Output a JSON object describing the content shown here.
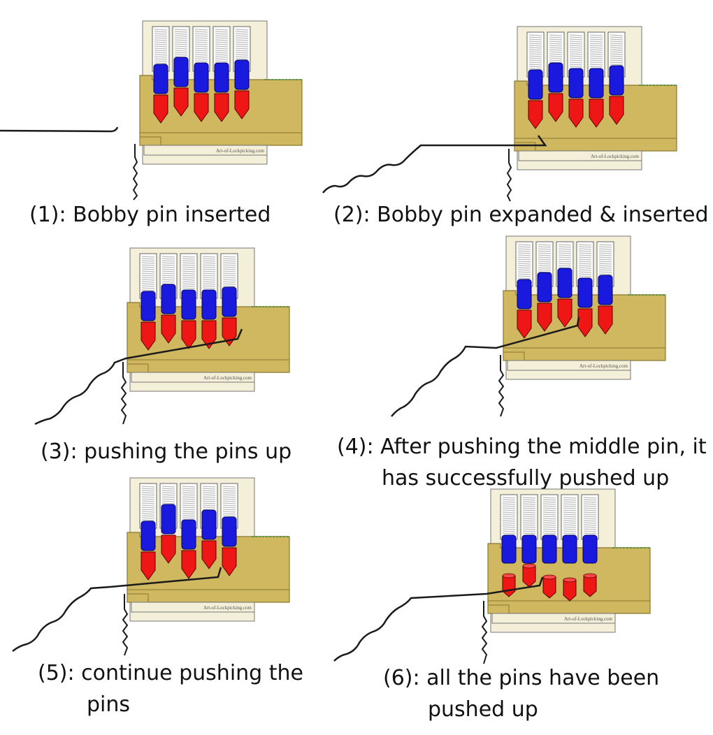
{
  "watermark": "Art-of-Lockpicking.com",
  "colors": {
    "housing": "#cfb860",
    "housing_edge": "#8a7630",
    "backplate": "#f3efd9",
    "spring": "#bdbdbd",
    "driver_pin": "#1a1adf",
    "key_pin": "#ef1616",
    "pin_outline": "#5a0000",
    "pick": "#1b1b1b"
  },
  "panels": [
    {
      "id": 1,
      "caption_lines": [
        "(1): Bobby pin inserted"
      ],
      "pins_set": [
        false,
        false,
        false,
        false,
        false
      ],
      "pick": "straight"
    },
    {
      "id": 2,
      "caption_lines": [
        "(2): Bobby pin expanded & inserted"
      ],
      "pins_set": [
        false,
        false,
        false,
        false,
        false
      ],
      "pick": "expanded"
    },
    {
      "id": 3,
      "caption_lines": [
        "(3): pushing the pins up"
      ],
      "pins_set": [
        false,
        false,
        false,
        false,
        false
      ],
      "pick": "lifting"
    },
    {
      "id": 4,
      "caption_lines": [
        "(4): After pushing the middle pin, it",
        "has successfully pushed up"
      ],
      "pins_set": [
        false,
        false,
        true,
        false,
        false
      ],
      "pick": "lifting"
    },
    {
      "id": 5,
      "caption_lines": [
        "(5): continue pushing the",
        "pins"
      ],
      "pins_set": [
        false,
        true,
        false,
        true,
        false
      ],
      "pick": "lifting"
    },
    {
      "id": 6,
      "caption_lines": [
        "(6): all the pins have been",
        "pushed up"
      ],
      "pins_set": [
        true,
        true,
        true,
        true,
        true
      ],
      "pick": "lifting"
    }
  ]
}
